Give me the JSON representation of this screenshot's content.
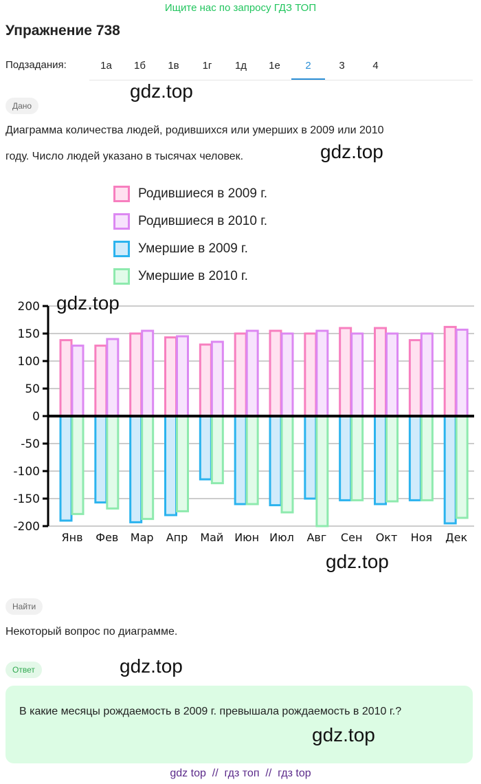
{
  "banner": "Ищите нас по запросу ГДЗ ТОП",
  "title": "Упражнение 738",
  "subtasks_label": "Подзадания:",
  "tabs": [
    "1а",
    "1б",
    "1в",
    "1г",
    "1д",
    "1е",
    "2",
    "3",
    "4"
  ],
  "active_tab": "2",
  "given_badge": "Дано",
  "given_text_1": "Диаграмма количества людей, родившихся или умерших в 2009 или 2010",
  "given_text_2": "году. Число людей указано в тысячах человек.",
  "find_badge": "Найти",
  "find_text": "Некоторый вопрос по диаграмме.",
  "answer_badge": "Ответ",
  "answer_text": "В какие месяцы рождаемость в 2009 г. превышала рождаемость в 2010 г.?",
  "watermark": "gdz.top",
  "footer": "gdz top  //  гдз топ  //  гдз top",
  "chart_data": {
    "type": "bar",
    "categories": [
      "Янв",
      "Фев",
      "Мар",
      "Апр",
      "Май",
      "Июн",
      "Июл",
      "Авг",
      "Сен",
      "Окт",
      "Ноя",
      "Дек"
    ],
    "ylim": [
      -200,
      200
    ],
    "yticks": [
      "200",
      "150",
      "100",
      "50",
      "0",
      "-50",
      "-100",
      "-150",
      "-200"
    ],
    "grid": true,
    "legend_placement": "top",
    "series": [
      {
        "name": "Родившиеся в 2009 г.",
        "color": "#f77fbf",
        "fill": "#ffe1f0",
        "values": [
          138,
          128,
          150,
          143,
          130,
          150,
          155,
          150,
          160,
          160,
          138,
          162
        ]
      },
      {
        "name": "Родившиеся в 2010 г.",
        "color": "#dc88f2",
        "fill": "#f7e3fd",
        "values": [
          128,
          140,
          155,
          145,
          135,
          155,
          150,
          155,
          150,
          150,
          150,
          157
        ]
      },
      {
        "name": "Умершие в 2009 г.",
        "color": "#2bb3ee",
        "fill": "#d0ebfb",
        "values": [
          -190,
          -157,
          -193,
          -180,
          -115,
          -160,
          -162,
          -150,
          -153,
          -160,
          -153,
          -195
        ]
      },
      {
        "name": "Умершие в 2010 г.",
        "color": "#8eeaae",
        "fill": "#e1fbe9",
        "values": [
          -178,
          -168,
          -187,
          -173,
          -122,
          -160,
          -175,
          -200,
          -153,
          -155,
          -153,
          -185
        ]
      }
    ]
  }
}
